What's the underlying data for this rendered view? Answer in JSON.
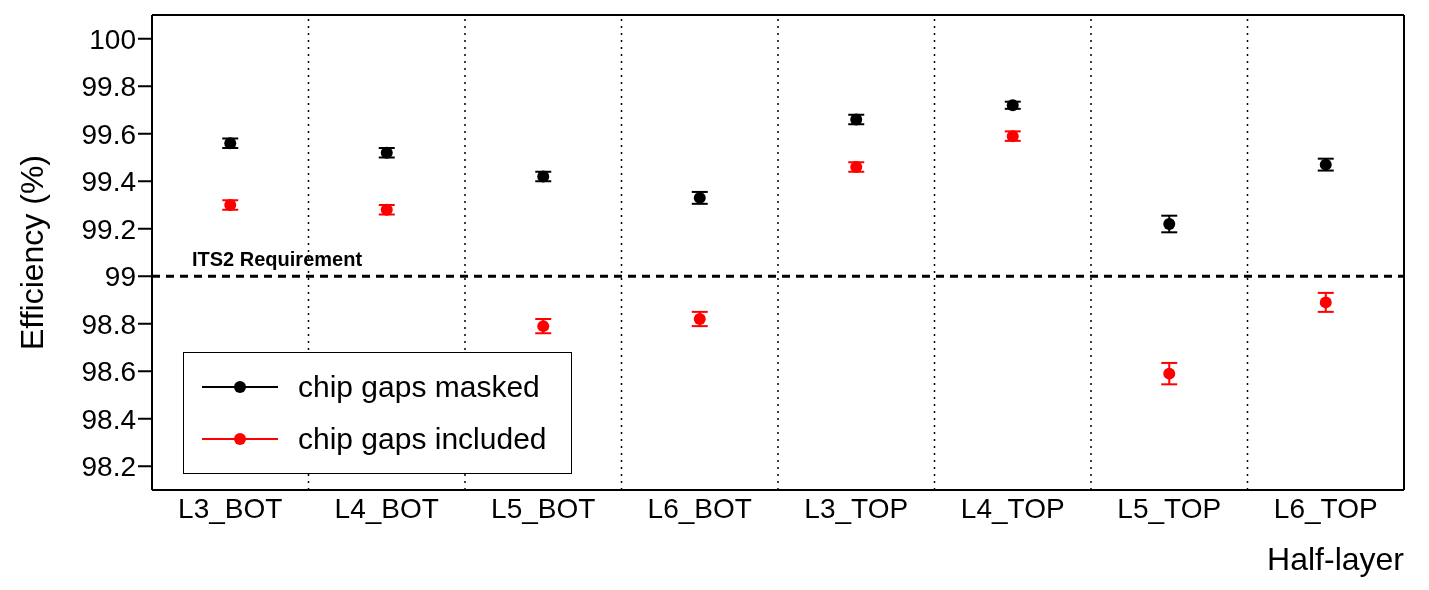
{
  "chart_data": {
    "type": "scatter",
    "xlabel": "Half-layer",
    "ylabel": "Efficiency (%)",
    "categories": [
      "L3_BOT",
      "L4_BOT",
      "L5_BOT",
      "L6_BOT",
      "L3_TOP",
      "L4_TOP",
      "L5_TOP",
      "L6_TOP"
    ],
    "series": [
      {
        "name": "chip gaps masked",
        "color": "#000000",
        "values": [
          99.56,
          99.52,
          99.42,
          99.33,
          99.66,
          99.72,
          99.22,
          99.47
        ],
        "errors": [
          0.02,
          0.02,
          0.02,
          0.025,
          0.02,
          0.015,
          0.035,
          0.025
        ]
      },
      {
        "name": "chip gaps included",
        "color": "#ff0000",
        "values": [
          99.3,
          99.28,
          98.79,
          98.82,
          99.46,
          99.59,
          98.59,
          98.89
        ],
        "errors": [
          0.02,
          0.02,
          0.03,
          0.03,
          0.02,
          0.02,
          0.045,
          0.04
        ]
      }
    ],
    "ylim": [
      98.1,
      100.1
    ],
    "yticks": [
      98.2,
      98.4,
      98.6,
      98.8,
      99,
      99.2,
      99.4,
      99.6,
      99.8,
      100
    ],
    "ref_lines": [
      {
        "axis": "y",
        "value": 99,
        "label": "ITS2 Requirement",
        "color": "#000000",
        "line_style": "dashed"
      }
    ],
    "grid": "x",
    "legend": "bottom left",
    "marker": "circle"
  }
}
